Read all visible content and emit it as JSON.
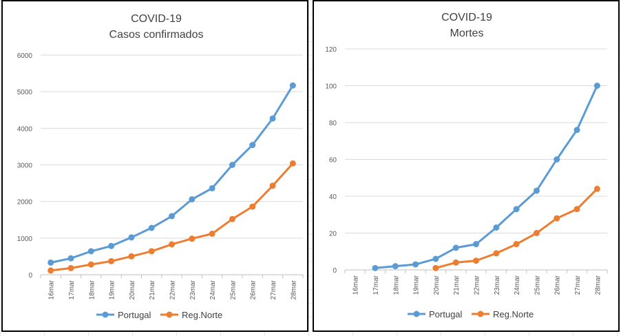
{
  "chart_data": [
    {
      "type": "line",
      "title": "COVID-19",
      "subtitle": "Casos confirmados",
      "categories": [
        "16mar",
        "17mar",
        "18mar",
        "19mar",
        "20mar",
        "21mar",
        "22mar",
        "23mar",
        "24mar",
        "25mar",
        "26mar",
        "27mar",
        "28mar"
      ],
      "ylim": [
        0,
        6000
      ],
      "yticks": [
        0,
        1000,
        2000,
        3000,
        4000,
        5000,
        6000
      ],
      "grid": true,
      "legend_position": "bottom",
      "series": [
        {
          "name": "Portugal",
          "color": "#5B9BD5",
          "values": [
            331,
            448,
            642,
            785,
            1020,
            1280,
            1600,
            2060,
            2362,
            3000,
            3544,
            4268,
            5170
          ]
        },
        {
          "name": "Reg.Norte",
          "color": "#ED7D31",
          "values": [
            115,
            180,
            280,
            370,
            502,
            642,
            830,
            985,
            1120,
            1520,
            1860,
            2430,
            3040
          ]
        }
      ]
    },
    {
      "type": "line",
      "title": "COVID-19",
      "subtitle": "Mortes",
      "categories": [
        "16mar",
        "17mar",
        "18mar",
        "19mar",
        "20mar",
        "21mar",
        "22mar",
        "23mar",
        "24mar",
        "25mar",
        "26mar",
        "27mar",
        "28mar"
      ],
      "ylim": [
        0,
        120
      ],
      "yticks": [
        0,
        20,
        40,
        60,
        80,
        100,
        120
      ],
      "grid": true,
      "legend_position": "bottom",
      "series": [
        {
          "name": "Portugal",
          "color": "#5B9BD5",
          "values": [
            null,
            1,
            2,
            3,
            6,
            12,
            14,
            23,
            33,
            43,
            60,
            76,
            100
          ]
        },
        {
          "name": "Reg.Norte",
          "color": "#ED7D31",
          "values": [
            null,
            null,
            null,
            null,
            1,
            4,
            5,
            9,
            14,
            20,
            28,
            33,
            44
          ]
        }
      ]
    }
  ]
}
